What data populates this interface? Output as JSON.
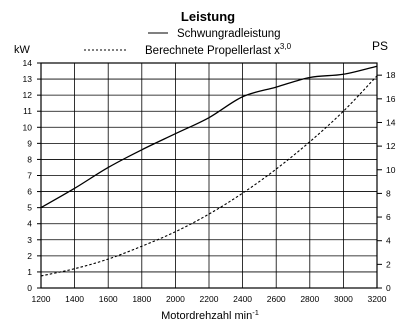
{
  "chart_data": {
    "type": "line",
    "title": "Leistung",
    "xlabel": "Motordrehzahl min",
    "xlabel_sup": "-1",
    "ylabel_left": "kW",
    "ylabel_right": "PS",
    "xlim": [
      1200,
      3200
    ],
    "ylim_left": [
      0,
      14
    ],
    "ylim_right": [
      0,
      19.03
    ],
    "x_ticks": [
      1200,
      1400,
      1600,
      1800,
      2000,
      2200,
      2400,
      2600,
      2800,
      3000,
      3200
    ],
    "y_ticks_left": [
      0,
      1,
      2,
      3,
      4,
      5,
      6,
      7,
      8,
      9,
      10,
      11,
      12,
      13,
      14
    ],
    "y_ticks_right": [
      0,
      2,
      4,
      6,
      8,
      10,
      12,
      14,
      16,
      18
    ],
    "grid": true,
    "legend": "top",
    "series": [
      {
        "name": "Schwungradleistung",
        "style": "solid",
        "x": [
          1200,
          1400,
          1600,
          1800,
          2000,
          2200,
          2400,
          2600,
          2800,
          3000,
          3200
        ],
        "y": [
          5.0,
          6.2,
          7.5,
          8.6,
          9.6,
          10.6,
          11.9,
          12.5,
          13.1,
          13.3,
          13.8
        ]
      },
      {
        "name": "Berechnete Propellerlast x",
        "name_sup": "3,0",
        "style": "dashed",
        "x": [
          1200,
          1400,
          1600,
          1800,
          2000,
          2200,
          2400,
          2600,
          2800,
          3000,
          3200
        ],
        "y": [
          0.75,
          1.2,
          1.8,
          2.6,
          3.5,
          4.6,
          5.9,
          7.4,
          9.1,
          11.0,
          13.2
        ]
      }
    ]
  }
}
